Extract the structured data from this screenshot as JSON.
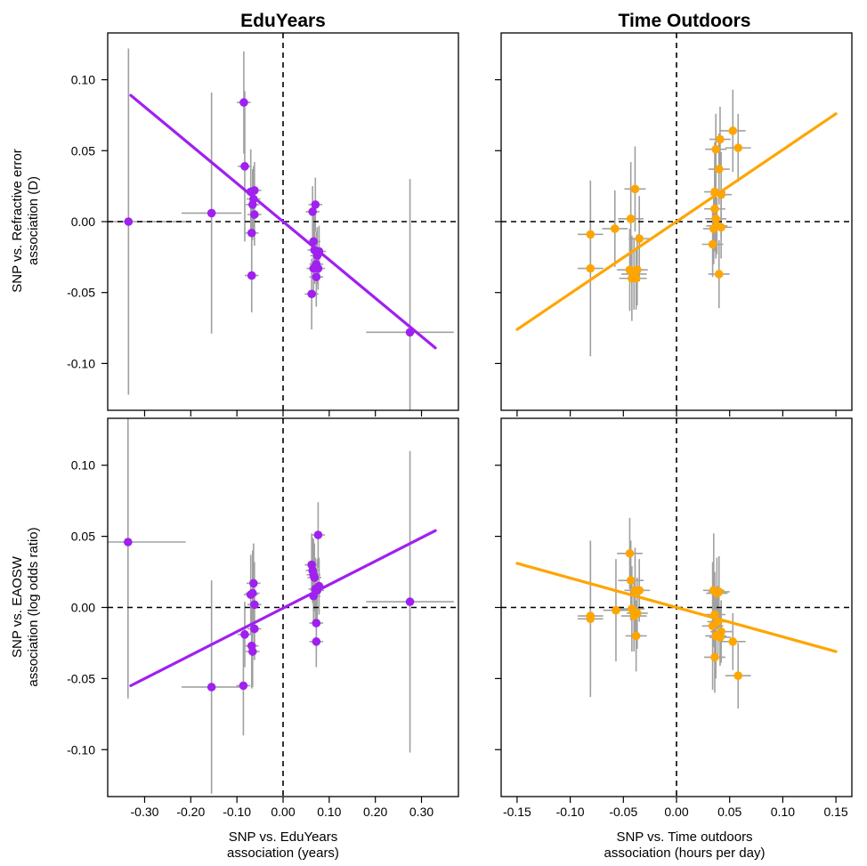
{
  "chart_data": {
    "type": "scatter",
    "layout": "2x2 grid of panels with shared axes per row and column",
    "column_titles": [
      "EduYears",
      "Time Outdoors"
    ],
    "row_ylabels": [
      [
        "SNP vs. Refractive error",
        "association (D)"
      ],
      [
        "SNP vs. EAOSW",
        "association (log odds ratio)"
      ]
    ],
    "column_xlabels": [
      [
        "SNP vs. EduYears",
        "association (years)"
      ],
      [
        "SNP vs. Time outdoors",
        "association (hours per day)"
      ]
    ],
    "xlim": [
      [
        -0.38,
        0.38
      ],
      [
        -0.165,
        0.165
      ]
    ],
    "ylim": [
      -0.133,
      0.133
    ],
    "xticks": [
      [
        "-0.30",
        "-0.20",
        "-0.10",
        "0.00",
        "0.10",
        "0.20",
        "0.30"
      ],
      [
        "-0.15",
        "-0.10",
        "-0.05",
        "0.00",
        "0.05",
        "0.10",
        "0.15"
      ]
    ],
    "yticks": [
      "0.10",
      "0.05",
      "0.00",
      "-0.05",
      "-0.10"
    ],
    "reference_lines": {
      "x": 0,
      "y": 0,
      "style": "dashed"
    },
    "colors": {
      "EduYears": "#a020f0",
      "Time Outdoors": "#ffa500",
      "error_bars": "#a0a0a0"
    },
    "panels": [
      {
        "column": 0,
        "row": 0,
        "fit_line": {
          "x": [
            -0.33,
            0.33
          ],
          "y": [
            0.089,
            -0.089
          ]
        },
        "points": [
          {
            "x": -0.335,
            "y": 0.0,
            "xerr": 0.125,
            "yerr": 0.122
          },
          {
            "x": -0.155,
            "y": 0.006,
            "xerr": 0.065,
            "yerr": 0.085
          },
          {
            "x": -0.085,
            "y": 0.084,
            "xerr": 0.015,
            "yerr": 0.036
          },
          {
            "x": -0.083,
            "y": 0.039,
            "xerr": 0.015,
            "yerr": 0.053
          },
          {
            "x": -0.07,
            "y": 0.021,
            "xerr": 0.015,
            "yerr": 0.03
          },
          {
            "x": -0.068,
            "y": -0.008,
            "xerr": 0.015,
            "yerr": 0.03
          },
          {
            "x": -0.068,
            "y": -0.038,
            "xerr": 0.015,
            "yerr": 0.026
          },
          {
            "x": -0.066,
            "y": 0.012,
            "xerr": 0.015,
            "yerr": 0.025
          },
          {
            "x": -0.064,
            "y": 0.016,
            "xerr": 0.015,
            "yerr": 0.023
          },
          {
            "x": -0.062,
            "y": 0.022,
            "xerr": 0.015,
            "yerr": 0.02
          },
          {
            "x": -0.062,
            "y": 0.005,
            "xerr": 0.015,
            "yerr": 0.022
          },
          {
            "x": 0.062,
            "y": -0.051,
            "xerr": 0.015,
            "yerr": 0.025
          },
          {
            "x": 0.064,
            "y": 0.007,
            "xerr": 0.015,
            "yerr": 0.018
          },
          {
            "x": 0.066,
            "y": -0.014,
            "xerr": 0.015,
            "yerr": 0.022
          },
          {
            "x": 0.066,
            "y": -0.033,
            "xerr": 0.015,
            "yerr": 0.016
          },
          {
            "x": 0.068,
            "y": -0.02,
            "xerr": 0.015,
            "yerr": 0.024
          },
          {
            "x": 0.07,
            "y": 0.012,
            "xerr": 0.015,
            "yerr": 0.019
          },
          {
            "x": 0.072,
            "y": -0.03,
            "xerr": 0.015,
            "yerr": 0.023
          },
          {
            "x": 0.072,
            "y": -0.039,
            "xerr": 0.015,
            "yerr": 0.021
          },
          {
            "x": 0.074,
            "y": -0.024,
            "xerr": 0.015,
            "yerr": 0.02
          },
          {
            "x": 0.076,
            "y": -0.033,
            "xerr": 0.015,
            "yerr": 0.015
          },
          {
            "x": 0.078,
            "y": -0.021,
            "xerr": 0.015,
            "yerr": 0.018
          },
          {
            "x": 0.275,
            "y": -0.078,
            "xerr": 0.095,
            "yerr": 0.108
          }
        ]
      },
      {
        "column": 1,
        "row": 0,
        "fit_line": {
          "x": [
            -0.15,
            0.15
          ],
          "y": [
            -0.076,
            0.076
          ]
        },
        "points": [
          {
            "x": -0.081,
            "y": -0.009,
            "xerr": 0.012,
            "yerr": 0.023
          },
          {
            "x": -0.081,
            "y": -0.033,
            "xerr": 0.012,
            "yerr": 0.062
          },
          {
            "x": -0.058,
            "y": -0.005,
            "xerr": 0.012,
            "yerr": 0.027
          },
          {
            "x": -0.044,
            "y": -0.034,
            "xerr": 0.012,
            "yerr": 0.029
          },
          {
            "x": -0.043,
            "y": 0.002,
            "xerr": 0.012,
            "yerr": 0.04
          },
          {
            "x": -0.042,
            "y": -0.04,
            "xerr": 0.012,
            "yerr": 0.03
          },
          {
            "x": -0.04,
            "y": -0.037,
            "xerr": 0.012,
            "yerr": 0.025
          },
          {
            "x": -0.039,
            "y": 0.023,
            "xerr": 0.01,
            "yerr": 0.03
          },
          {
            "x": -0.038,
            "y": -0.04,
            "xerr": 0.01,
            "yerr": 0.022
          },
          {
            "x": -0.037,
            "y": -0.034,
            "xerr": 0.01,
            "yerr": 0.025
          },
          {
            "x": -0.035,
            "y": -0.012,
            "xerr": 0.01,
            "yerr": 0.03
          },
          {
            "x": 0.034,
            "y": -0.016,
            "xerr": 0.01,
            "yerr": 0.023
          },
          {
            "x": 0.035,
            "y": -0.005,
            "xerr": 0.01,
            "yerr": 0.025
          },
          {
            "x": 0.036,
            "y": 0.009,
            "xerr": 0.01,
            "yerr": 0.03
          },
          {
            "x": 0.036,
            "y": 0.021,
            "xerr": 0.01,
            "yerr": 0.035
          },
          {
            "x": 0.037,
            "y": 0.002,
            "xerr": 0.01,
            "yerr": 0.028
          },
          {
            "x": 0.037,
            "y": 0.051,
            "xerr": 0.01,
            "yerr": 0.025
          },
          {
            "x": 0.038,
            "y": -0.003,
            "xerr": 0.01,
            "yerr": 0.02
          },
          {
            "x": 0.04,
            "y": 0.037,
            "xerr": 0.01,
            "yerr": 0.025
          },
          {
            "x": 0.04,
            "y": -0.037,
            "xerr": 0.01,
            "yerr": 0.024
          },
          {
            "x": 0.041,
            "y": 0.058,
            "xerr": 0.01,
            "yerr": 0.023
          },
          {
            "x": 0.042,
            "y": 0.019,
            "xerr": 0.01,
            "yerr": 0.03
          },
          {
            "x": 0.042,
            "y": -0.004,
            "xerr": 0.01,
            "yerr": 0.022
          },
          {
            "x": 0.053,
            "y": 0.064,
            "xerr": 0.012,
            "yerr": 0.029
          },
          {
            "x": 0.058,
            "y": 0.052,
            "xerr": 0.012,
            "yerr": 0.024
          }
        ]
      },
      {
        "column": 0,
        "row": 1,
        "fit_line": {
          "x": [
            -0.33,
            0.33
          ],
          "y": [
            -0.055,
            0.054
          ]
        },
        "points": [
          {
            "x": -0.336,
            "y": 0.046,
            "xerr": 0.125,
            "yerr": 0.11
          },
          {
            "x": -0.155,
            "y": -0.056,
            "xerr": 0.065,
            "yerr": 0.075
          },
          {
            "x": -0.086,
            "y": -0.055,
            "xerr": 0.015,
            "yerr": 0.035
          },
          {
            "x": -0.083,
            "y": -0.019,
            "xerr": 0.015,
            "yerr": 0.023
          },
          {
            "x": -0.07,
            "y": 0.009,
            "xerr": 0.015,
            "yerr": 0.028
          },
          {
            "x": -0.068,
            "y": -0.027,
            "xerr": 0.015,
            "yerr": 0.03
          },
          {
            "x": -0.066,
            "y": 0.01,
            "xerr": 0.015,
            "yerr": 0.03
          },
          {
            "x": -0.066,
            "y": -0.031,
            "xerr": 0.015,
            "yerr": 0.025
          },
          {
            "x": -0.064,
            "y": 0.017,
            "xerr": 0.015,
            "yerr": 0.028
          },
          {
            "x": -0.062,
            "y": 0.002,
            "xerr": 0.015,
            "yerr": 0.03
          },
          {
            "x": -0.062,
            "y": -0.015,
            "xerr": 0.015,
            "yerr": 0.022
          },
          {
            "x": 0.062,
            "y": 0.03,
            "xerr": 0.015,
            "yerr": 0.022
          },
          {
            "x": 0.064,
            "y": 0.026,
            "xerr": 0.015,
            "yerr": 0.023
          },
          {
            "x": 0.066,
            "y": 0.023,
            "xerr": 0.015,
            "yerr": 0.025
          },
          {
            "x": 0.066,
            "y": 0.008,
            "xerr": 0.015,
            "yerr": 0.02
          },
          {
            "x": 0.068,
            "y": 0.021,
            "xerr": 0.015,
            "yerr": 0.024
          },
          {
            "x": 0.07,
            "y": 0.013,
            "xerr": 0.015,
            "yerr": 0.022
          },
          {
            "x": 0.072,
            "y": -0.011,
            "xerr": 0.015,
            "yerr": 0.02
          },
          {
            "x": 0.072,
            "y": -0.024,
            "xerr": 0.015,
            "yerr": 0.018
          },
          {
            "x": 0.074,
            "y": 0.012,
            "xerr": 0.015,
            "yerr": 0.022
          },
          {
            "x": 0.076,
            "y": 0.051,
            "xerr": 0.015,
            "yerr": 0.023
          },
          {
            "x": 0.078,
            "y": 0.015,
            "xerr": 0.015,
            "yerr": 0.02
          },
          {
            "x": 0.275,
            "y": 0.004,
            "xerr": 0.095,
            "yerr": 0.106
          }
        ]
      },
      {
        "column": 1,
        "row": 1,
        "fit_line": {
          "x": [
            -0.15,
            0.15
          ],
          "y": [
            0.031,
            -0.031
          ]
        },
        "points": [
          {
            "x": -0.081,
            "y": -0.006,
            "xerr": 0.012,
            "yerr": 0.05
          },
          {
            "x": -0.081,
            "y": -0.008,
            "xerr": 0.012,
            "yerr": 0.055
          },
          {
            "x": -0.057,
            "y": -0.002,
            "xerr": 0.012,
            "yerr": 0.036
          },
          {
            "x": -0.044,
            "y": 0.038,
            "xerr": 0.012,
            "yerr": 0.025
          },
          {
            "x": -0.043,
            "y": 0.019,
            "xerr": 0.012,
            "yerr": 0.028
          },
          {
            "x": -0.042,
            "y": -0.001,
            "xerr": 0.012,
            "yerr": 0.03
          },
          {
            "x": -0.04,
            "y": -0.006,
            "xerr": 0.012,
            "yerr": 0.025
          },
          {
            "x": -0.039,
            "y": 0.012,
            "xerr": 0.01,
            "yerr": 0.03
          },
          {
            "x": -0.038,
            "y": -0.02,
            "xerr": 0.01,
            "yerr": 0.025
          },
          {
            "x": -0.037,
            "y": -0.004,
            "xerr": 0.01,
            "yerr": 0.025
          },
          {
            "x": -0.035,
            "y": 0.012,
            "xerr": 0.01,
            "yerr": 0.022
          },
          {
            "x": 0.034,
            "y": -0.013,
            "xerr": 0.01,
            "yerr": 0.045
          },
          {
            "x": 0.035,
            "y": 0.012,
            "xerr": 0.01,
            "yerr": 0.04
          },
          {
            "x": 0.036,
            "y": -0.035,
            "xerr": 0.01,
            "yerr": 0.025
          },
          {
            "x": 0.036,
            "y": -0.005,
            "xerr": 0.01,
            "yerr": 0.03
          },
          {
            "x": 0.037,
            "y": -0.02,
            "xerr": 0.01,
            "yerr": 0.03
          },
          {
            "x": 0.038,
            "y": 0.01,
            "xerr": 0.01,
            "yerr": 0.025
          },
          {
            "x": 0.039,
            "y": -0.01,
            "xerr": 0.01,
            "yerr": 0.025
          },
          {
            "x": 0.04,
            "y": 0.011,
            "xerr": 0.01,
            "yerr": 0.025
          },
          {
            "x": 0.041,
            "y": -0.021,
            "xerr": 0.01,
            "yerr": 0.02
          },
          {
            "x": 0.042,
            "y": -0.017,
            "xerr": 0.01,
            "yerr": 0.022
          },
          {
            "x": 0.053,
            "y": -0.024,
            "xerr": 0.012,
            "yerr": 0.02
          },
          {
            "x": 0.058,
            "y": -0.048,
            "xerr": 0.012,
            "yerr": 0.023
          }
        ]
      }
    ]
  }
}
